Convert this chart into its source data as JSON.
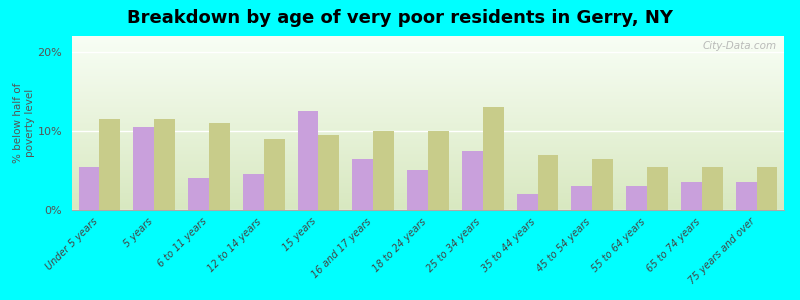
{
  "title": "Breakdown by age of very poor residents in Gerry, NY",
  "ylabel": "% below half of\npoverty level",
  "categories": [
    "Under 5 years",
    "5 years",
    "6 to 11 years",
    "12 to 14 years",
    "15 years",
    "16 and 17 years",
    "18 to 24 years",
    "25 to 34 years",
    "35 to 44 years",
    "45 to 54 years",
    "55 to 64 years",
    "65 to 74 years",
    "75 years and over"
  ],
  "gerry_values": [
    5.5,
    10.5,
    4.0,
    4.5,
    12.5,
    6.5,
    5.0,
    7.5,
    2.0,
    3.0,
    3.0,
    3.5,
    3.5
  ],
  "newyork_values": [
    11.5,
    11.5,
    11.0,
    9.0,
    9.5,
    10.0,
    10.0,
    13.0,
    7.0,
    6.5,
    5.5,
    5.5,
    5.5
  ],
  "gerry_color": "#c9a0dc",
  "newyork_color": "#c8cc8a",
  "background_color": "#00ffff",
  "ylim": [
    0,
    22
  ],
  "yticks": [
    0,
    10,
    20
  ],
  "ytick_labels": [
    "0%",
    "10%",
    "20%"
  ],
  "watermark": "City-Data.com",
  "title_fontsize": 13,
  "bar_width": 0.38
}
